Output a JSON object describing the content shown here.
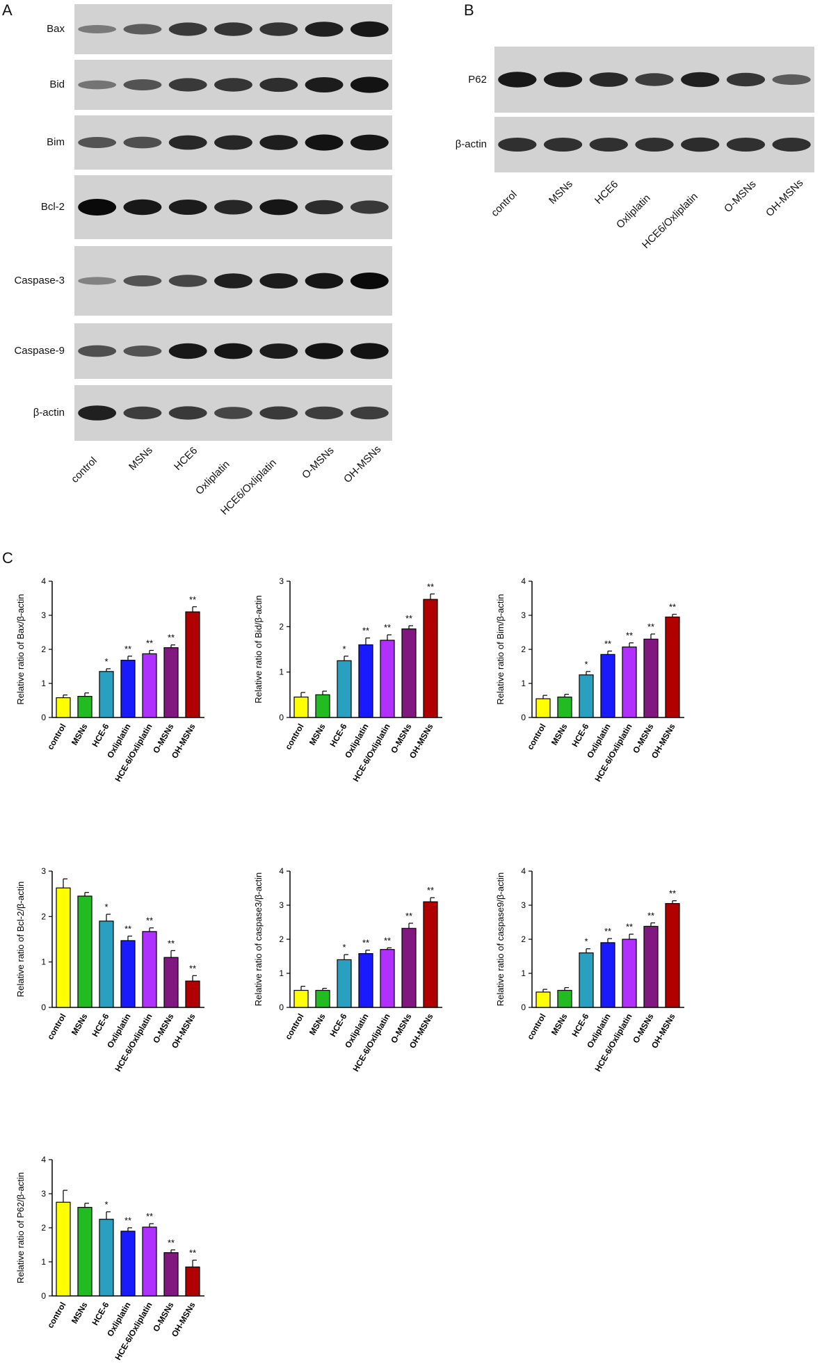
{
  "panels": {
    "a": "A",
    "b": "B",
    "c": "C"
  },
  "lanes_a": [
    "control",
    "MSNs",
    "HCE6",
    "Oxliplatin",
    "HCE6/Oxliplatin",
    "O-MSNs",
    "OH-MSNs"
  ],
  "lanes_b": [
    "control",
    "MSNs",
    "HCE6",
    "Oxliplatin",
    "HCE6/Oxliplatin",
    "O-MSNs",
    "OH-MSNs"
  ],
  "blots_a": [
    {
      "label": "Bax",
      "intensity": [
        0.25,
        0.45,
        0.7,
        0.72,
        0.72,
        0.85,
        0.9
      ]
    },
    {
      "label": "Bid",
      "intensity": [
        0.3,
        0.5,
        0.7,
        0.72,
        0.76,
        0.88,
        0.95
      ]
    },
    {
      "label": "Bim",
      "intensity": [
        0.5,
        0.55,
        0.8,
        0.82,
        0.86,
        0.95,
        0.92
      ]
    },
    {
      "label": "Bcl-2",
      "intensity": [
        1.0,
        0.9,
        0.88,
        0.82,
        0.92,
        0.78,
        0.7
      ]
    },
    {
      "label": "Caspase-3",
      "intensity": [
        0.2,
        0.5,
        0.6,
        0.85,
        0.88,
        0.92,
        1.0
      ]
    },
    {
      "label": "Caspase-9",
      "intensity": [
        0.55,
        0.5,
        0.9,
        0.92,
        0.88,
        0.95,
        0.95
      ]
    },
    {
      "label": "β-actin",
      "intensity": [
        0.85,
        0.65,
        0.7,
        0.6,
        0.68,
        0.66,
        0.66
      ]
    }
  ],
  "blots_b": [
    {
      "label": "P62",
      "intensity": [
        0.9,
        0.88,
        0.8,
        0.65,
        0.85,
        0.72,
        0.45
      ]
    },
    {
      "label": "β-actin",
      "intensity": [
        0.75,
        0.75,
        0.75,
        0.75,
        0.78,
        0.75,
        0.75
      ]
    }
  ],
  "colors": {
    "bars": [
      "#ffff00",
      "#22bb22",
      "#2aa0c0",
      "#1a1aff",
      "#b030ff",
      "#801880",
      "#b00000"
    ],
    "blot_bg": "#d2d2d2",
    "band": "#0a0a0a"
  },
  "chart_data": [
    {
      "type": "bar",
      "categories": [
        "control",
        "MSNs",
        "HCE-6",
        "Oxliplatin",
        "HCE-6/Oxliplatin",
        "O-MSNs",
        "OH-MSNs"
      ],
      "values": [
        0.58,
        0.62,
        1.35,
        1.68,
        1.87,
        2.05,
        3.1
      ],
      "errors": [
        0.08,
        0.1,
        0.08,
        0.12,
        0.1,
        0.08,
        0.15
      ],
      "significance": [
        "",
        "",
        "*",
        "**",
        "**",
        "**",
        "**"
      ],
      "ylabel": "Relative ratio of  Bax/β-actin",
      "ylim": [
        0,
        4
      ],
      "yticks": [
        0,
        1,
        2,
        3,
        4
      ]
    },
    {
      "type": "bar",
      "categories": [
        "control",
        "MSNs",
        "HCE-6",
        "Oxliplatin",
        "HCE-6/Oxliplatin",
        "O-MSNs",
        "OH-MSNs"
      ],
      "values": [
        0.45,
        0.5,
        1.25,
        1.6,
        1.7,
        1.95,
        2.6
      ],
      "errors": [
        0.1,
        0.08,
        0.1,
        0.15,
        0.12,
        0.07,
        0.12
      ],
      "significance": [
        "",
        "",
        "*",
        "**",
        "**",
        "**",
        "**"
      ],
      "ylabel": "Relative ratio of  Bid/β-actin",
      "ylim": [
        0,
        3
      ],
      "yticks": [
        0,
        1,
        2,
        3
      ]
    },
    {
      "type": "bar",
      "categories": [
        "control",
        "MSNs",
        "HCE-6",
        "Oxliplatin",
        "HCE-6/Oxliplatin",
        "O-MSNs",
        "OH-MSNs"
      ],
      "values": [
        0.55,
        0.6,
        1.25,
        1.85,
        2.07,
        2.3,
        2.95
      ],
      "errors": [
        0.1,
        0.08,
        0.1,
        0.1,
        0.12,
        0.15,
        0.08
      ],
      "significance": [
        "",
        "",
        "*",
        "**",
        "**",
        "**",
        "**"
      ],
      "ylabel": "Relative ratio of  Bim/β-actin",
      "ylim": [
        0,
        4
      ],
      "yticks": [
        0,
        1,
        2,
        3,
        4
      ]
    },
    {
      "type": "bar",
      "categories": [
        "control",
        "MSNs",
        "HCE-6",
        "Oxliplatin",
        "HCE-6/Oxliplatin",
        "O-MSNs",
        "OH-MSNs"
      ],
      "values": [
        2.63,
        2.45,
        1.9,
        1.47,
        1.67,
        1.1,
        0.58
      ],
      "errors": [
        0.2,
        0.08,
        0.15,
        0.1,
        0.08,
        0.15,
        0.12
      ],
      "significance": [
        "",
        "",
        "*",
        "**",
        "**",
        "**",
        "**"
      ],
      "ylabel": "Relative ratio of  Bcl-2/β-actin",
      "ylim": [
        0,
        3
      ],
      "yticks": [
        0,
        1,
        2,
        3
      ]
    },
    {
      "type": "bar",
      "categories": [
        "control",
        "MSNs",
        "HCE-6",
        "Oxliplatin",
        "HCE-6/Oxliplatin",
        "O-MSNs",
        "OH-MSNs"
      ],
      "values": [
        0.5,
        0.5,
        1.4,
        1.58,
        1.7,
        2.32,
        3.1
      ],
      "errors": [
        0.12,
        0.06,
        0.15,
        0.1,
        0.05,
        0.15,
        0.12
      ],
      "significance": [
        "",
        "",
        "*",
        "**",
        "**",
        "**",
        "**"
      ],
      "ylabel": "Relative ratio of  caspase3/β-actin",
      "ylim": [
        0,
        4
      ],
      "yticks": [
        0,
        1,
        2,
        3,
        4
      ]
    },
    {
      "type": "bar",
      "categories": [
        "control",
        "MSNs",
        "HCE-6",
        "Oxliplatin",
        "HCE-6/Oxliplatin",
        "O-MSNs",
        "OH-MSNs"
      ],
      "values": [
        0.45,
        0.5,
        1.6,
        1.9,
        2.0,
        2.38,
        3.05
      ],
      "errors": [
        0.08,
        0.08,
        0.12,
        0.12,
        0.15,
        0.1,
        0.08
      ],
      "significance": [
        "",
        "",
        "*",
        "**",
        "**",
        "**",
        "**"
      ],
      "ylabel": "Relative ratio of  caspase9/β-actin",
      "ylim": [
        0,
        4
      ],
      "yticks": [
        0,
        1,
        2,
        3,
        4
      ]
    },
    {
      "type": "bar",
      "categories": [
        "control",
        "MSNs",
        "HCE-6",
        "Oxliplatin",
        "HCE-6/Oxliplatin",
        "O-MSNs",
        "OH-MSNs"
      ],
      "values": [
        2.75,
        2.6,
        2.25,
        1.9,
        2.02,
        1.27,
        0.85
      ],
      "errors": [
        0.35,
        0.12,
        0.22,
        0.1,
        0.1,
        0.08,
        0.2
      ],
      "significance": [
        "",
        "",
        "*",
        "**",
        "**",
        "**",
        "**"
      ],
      "ylabel": "Relative ratio of  P62/β-actin",
      "ylim": [
        0,
        4
      ],
      "yticks": [
        0,
        1,
        2,
        3,
        4
      ]
    }
  ]
}
